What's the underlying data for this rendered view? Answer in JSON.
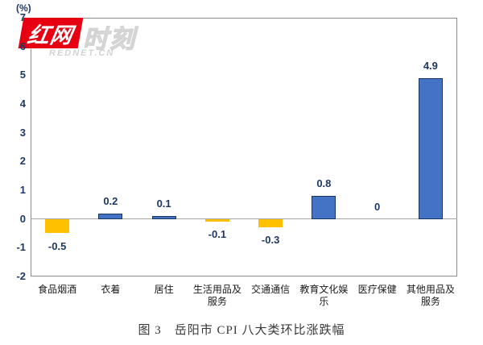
{
  "watermark": {
    "part1": "红网",
    "part2": "时刻",
    "domain": "REDNET.CN",
    "red": "#E60012"
  },
  "caption": "图 3　岳阳市 CPI 八大类环比涨跌幅",
  "chart_data": {
    "type": "bar",
    "title": "图 3 岳阳市 CPI 八大类环比涨跌幅",
    "ylabel": "(%)",
    "xlabel": "",
    "categories": [
      "食品烟酒",
      "衣着",
      "居住",
      "生活用品及服务",
      "交通通信",
      "教育文化娱乐",
      "医疗保健",
      "其他用品及服务"
    ],
    "category_lines": [
      [
        "食品烟酒"
      ],
      [
        "衣着"
      ],
      [
        "居住"
      ],
      [
        "生活用品及",
        "服务"
      ],
      [
        "交通通信"
      ],
      [
        "教育文化娱",
        "乐"
      ],
      [
        "医疗保健"
      ],
      [
        "其他用品及",
        "服务"
      ]
    ],
    "values": [
      -0.5,
      0.2,
      0.1,
      -0.1,
      -0.3,
      0.8,
      0,
      4.9
    ],
    "value_labels": [
      "-0.5",
      "0.2",
      "0.1",
      "-0.1",
      "-0.3",
      "0.8",
      "0",
      "4.9"
    ],
    "ylim": [
      -2,
      7
    ],
    "yticks": [
      7,
      6,
      5,
      4,
      3,
      2,
      1,
      0,
      -1,
      -2
    ],
    "grid": "zero-line-only",
    "legend": "none",
    "colors": {
      "positive_fill": "#4472C4",
      "positive_border": "#17375E",
      "negative_fill": "#FFC000",
      "axis_frame": "#8c8c8c",
      "zero_line": "#a6a6a6",
      "tick_text": "#1F3864",
      "category_text": "#1a1a1a",
      "caption_text": "#383838"
    }
  }
}
